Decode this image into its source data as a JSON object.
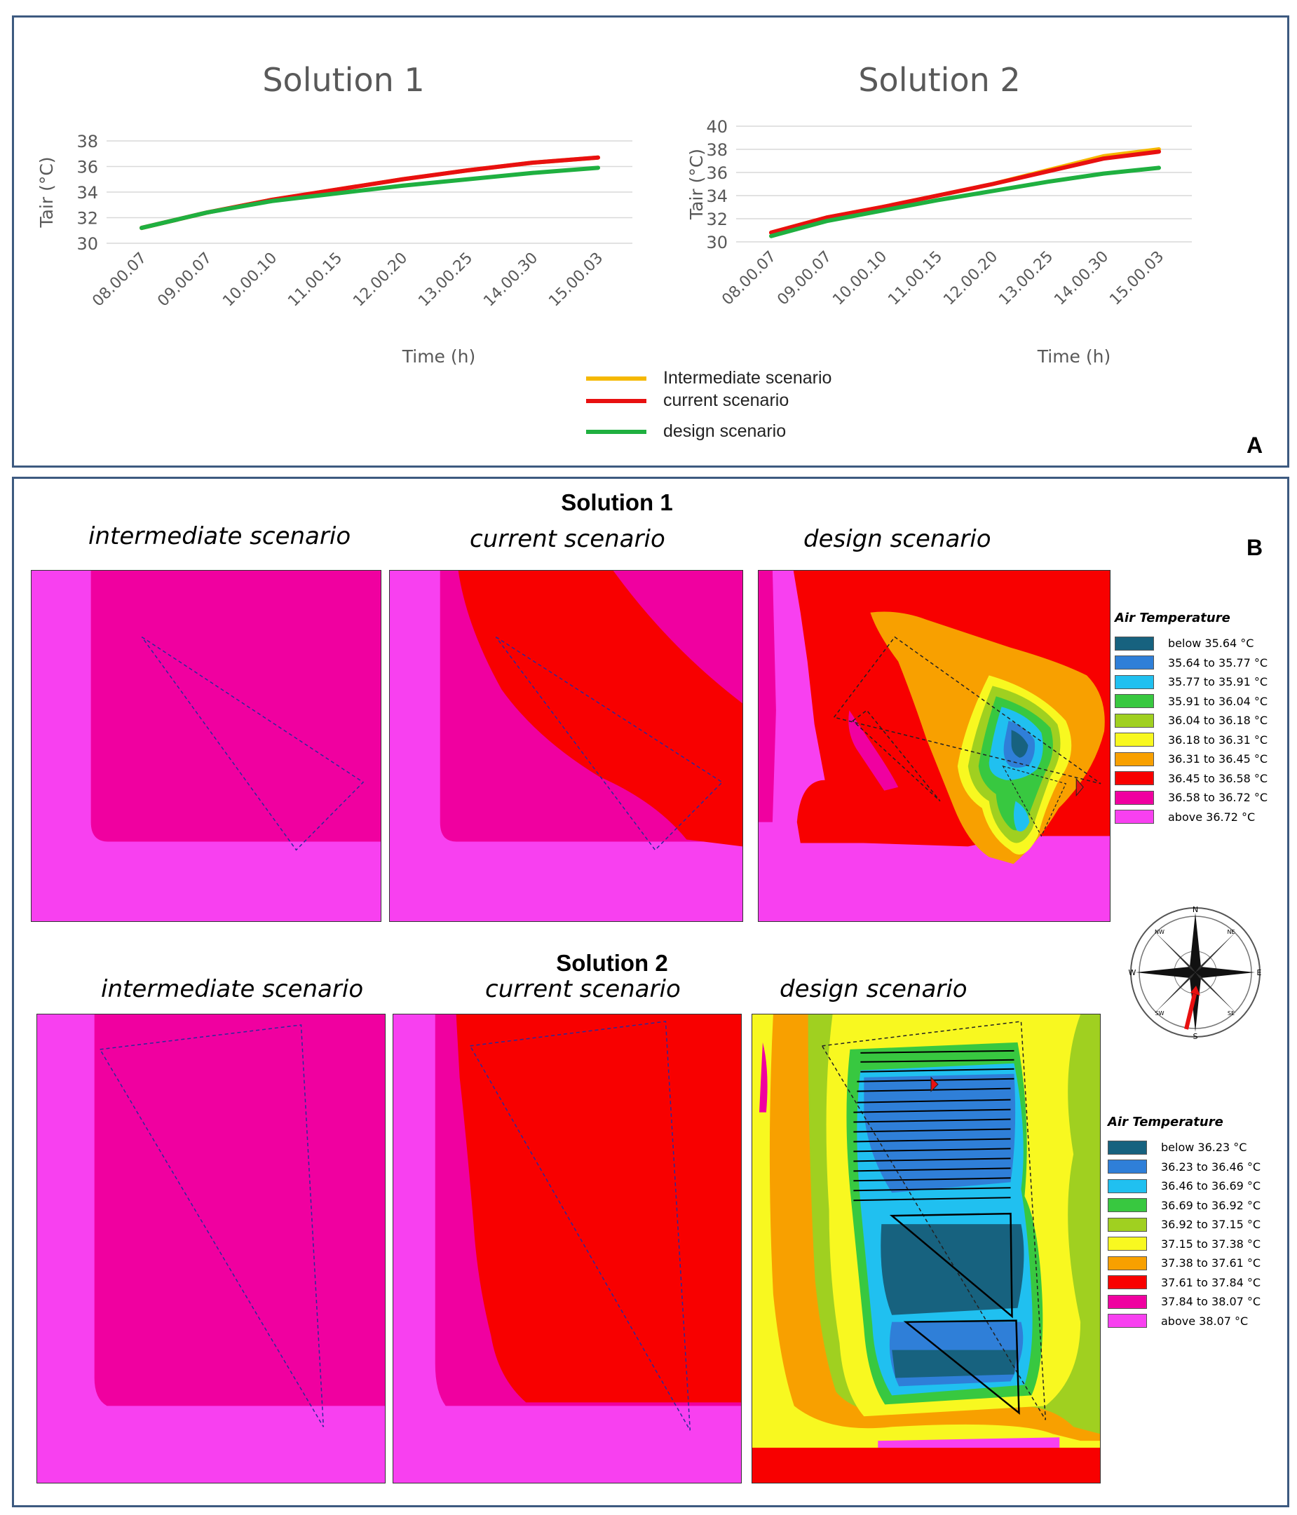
{
  "panel_a": {
    "letter": "A",
    "legend": [
      {
        "label": "Intermediate scenario",
        "color": "#f5b800"
      },
      {
        "label": "current scenario",
        "color": "#e81010"
      },
      {
        "label": "design scenario",
        "color": "#1fb040"
      }
    ]
  },
  "chart_data": [
    {
      "type": "line",
      "title": "Solution 1",
      "xlabel": "Time (h)",
      "ylabel": "Tair (°C)",
      "ylim": [
        30,
        38
      ],
      "yticks": [
        "30",
        "32",
        "34",
        "36",
        "38"
      ],
      "categories": [
        "08.00.07",
        "09.00.07",
        "10.00.10",
        "11.00.15",
        "12.00.20",
        "13.00.25",
        "14.00.30",
        "15.00.03"
      ],
      "series": [
        {
          "name": "Intermediate scenario",
          "color": "#f5b800",
          "values": [
            31.2,
            32.4,
            33.4,
            34.2,
            35.0,
            35.7,
            36.3,
            36.7
          ]
        },
        {
          "name": "current scenario",
          "color": "#e81010",
          "values": [
            31.2,
            32.4,
            33.4,
            34.2,
            35.0,
            35.7,
            36.3,
            36.7
          ]
        },
        {
          "name": "design scenario",
          "color": "#1fb040",
          "values": [
            31.2,
            32.4,
            33.3,
            33.9,
            34.5,
            35.0,
            35.5,
            35.9
          ]
        }
      ]
    },
    {
      "type": "line",
      "title": "Solution 2",
      "xlabel": "Time (h)",
      "ylabel": "Tair (°C)",
      "ylim": [
        30,
        40
      ],
      "yticks": [
        "30",
        "32",
        "34",
        "36",
        "38",
        "40"
      ],
      "categories": [
        "08.00.07",
        "09.00.07",
        "10.00.10",
        "11.00.15",
        "12.00.20",
        "13.00.25",
        "14.00.30",
        "15.00.03"
      ],
      "series": [
        {
          "name": "Intermediate scenario",
          "color": "#f5b800",
          "values": [
            30.8,
            32.1,
            33.0,
            34.0,
            35.0,
            36.2,
            37.4,
            38.0
          ]
        },
        {
          "name": "current scenario",
          "color": "#e81010",
          "values": [
            30.8,
            32.1,
            33.0,
            34.0,
            35.0,
            36.1,
            37.2,
            37.8
          ]
        },
        {
          "name": "design scenario",
          "color": "#1fb040",
          "values": [
            30.5,
            31.8,
            32.7,
            33.6,
            34.4,
            35.2,
            35.9,
            36.4
          ]
        }
      ]
    }
  ],
  "panel_b": {
    "letter": "B",
    "solution1": {
      "heading": "Solution 1",
      "labels": [
        "intermediate scenario",
        "current scenario",
        "design scenario"
      ]
    },
    "solution2": {
      "heading": "Solution 2",
      "labels": [
        "intermediate scenario",
        "current scenario",
        "design scenario"
      ]
    },
    "legend1": {
      "title": "Air Temperature",
      "items": [
        {
          "label": "below 35.64 °C",
          "color": "#17627f"
        },
        {
          "label": "35.64 to 35.77 °C",
          "color": "#2f7fd8"
        },
        {
          "label": "35.77 to 35.91 °C",
          "color": "#20c0f0"
        },
        {
          "label": "35.91 to 36.04 °C",
          "color": "#38c840"
        },
        {
          "label": "36.04 to 36.18 °C",
          "color": "#a0d020"
        },
        {
          "label": "36.18 to 36.31 °C",
          "color": "#f8f820"
        },
        {
          "label": "36.31 to 36.45 °C",
          "color": "#f8a000"
        },
        {
          "label": "36.45 to 36.58 °C",
          "color": "#f80000"
        },
        {
          "label": "36.58 to 36.72 °C",
          "color": "#f000a0"
        },
        {
          "label": "above 36.72 °C",
          "color": "#f840f0"
        }
      ]
    },
    "legend2": {
      "title": "Air Temperature",
      "items": [
        {
          "label": "below 36.23 °C",
          "color": "#17627f"
        },
        {
          "label": "36.23 to 36.46 °C",
          "color": "#2f7fd8"
        },
        {
          "label": "36.46 to 36.69 °C",
          "color": "#20c0f0"
        },
        {
          "label": "36.69 to 36.92 °C",
          "color": "#38c840"
        },
        {
          "label": "36.92 to 37.15 °C",
          "color": "#a0d020"
        },
        {
          "label": "37.15 to 37.38 °C",
          "color": "#f8f820"
        },
        {
          "label": "37.38 to 37.61 °C",
          "color": "#f8a000"
        },
        {
          "label": "37.61 to 37.84 °C",
          "color": "#f80000"
        },
        {
          "label": "37.84 to 38.07 °C",
          "color": "#f000a0"
        },
        {
          "label": "above 38.07 °C",
          "color": "#f840f0"
        }
      ]
    },
    "compass": {
      "n": "N",
      "s": "S",
      "e": "E",
      "w": "W",
      "ne": "NE",
      "nw": "NW",
      "se": "SE",
      "sw": "SW"
    }
  }
}
